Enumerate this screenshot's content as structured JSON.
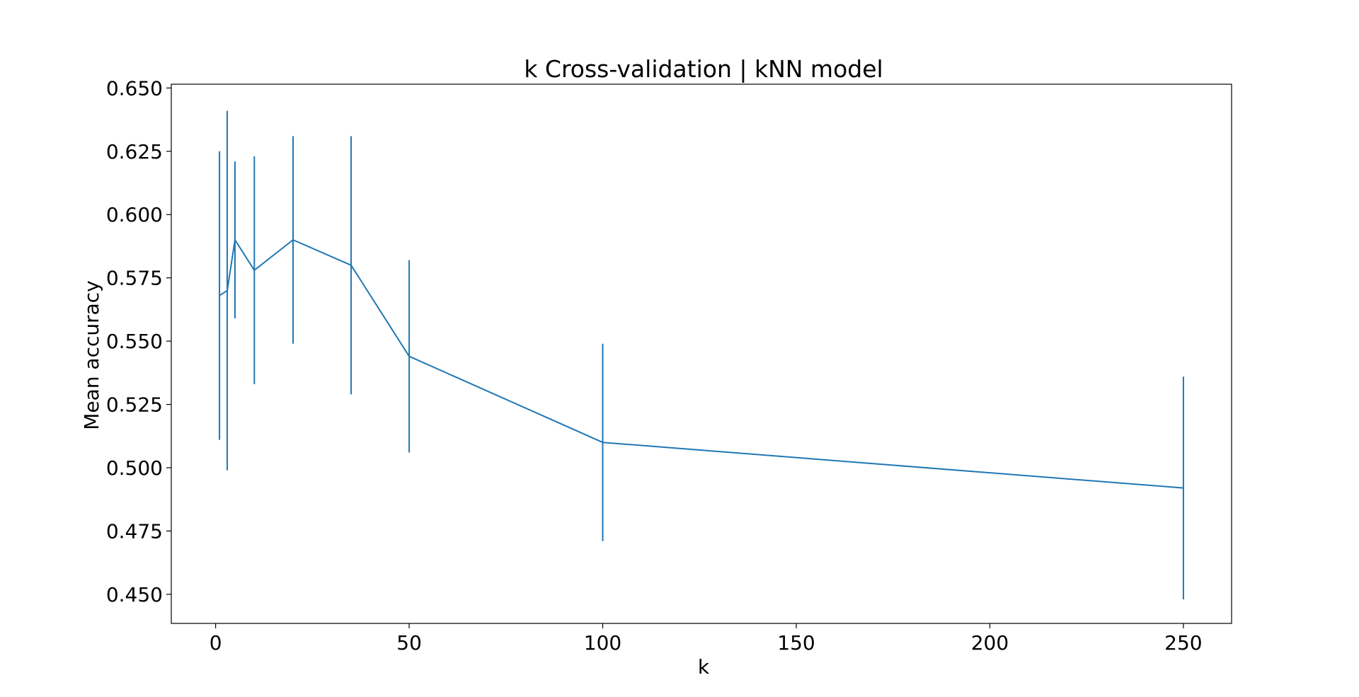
{
  "chart_data": {
    "type": "line",
    "title": "k Cross-validation | kNN model",
    "xlabel": "k",
    "ylabel": "Mean accuracy",
    "xlim": [
      -11.45,
      262.45
    ],
    "ylim": [
      0.4385,
      0.6515
    ],
    "xticks": [
      0,
      50,
      100,
      150,
      200,
      250
    ],
    "xtick_labels": [
      "0",
      "50",
      "100",
      "150",
      "200",
      "250"
    ],
    "yticks": [
      0.45,
      0.475,
      0.5,
      0.525,
      0.55,
      0.575,
      0.6,
      0.625,
      0.65
    ],
    "ytick_labels": [
      "0.450",
      "0.475",
      "0.500",
      "0.525",
      "0.550",
      "0.575",
      "0.600",
      "0.625",
      "0.650"
    ],
    "grid": false,
    "legend": "none",
    "series": [
      {
        "color": "#1f77b4",
        "x": [
          1,
          3,
          5,
          10,
          20,
          35,
          50,
          100,
          250
        ],
        "y": [
          0.568,
          0.57,
          0.59,
          0.578,
          0.59,
          0.58,
          0.544,
          0.51,
          0.492
        ],
        "error": [
          0.057,
          0.071,
          0.031,
          0.045,
          0.041,
          0.051,
          0.038,
          0.039,
          0.044
        ]
      }
    ]
  }
}
